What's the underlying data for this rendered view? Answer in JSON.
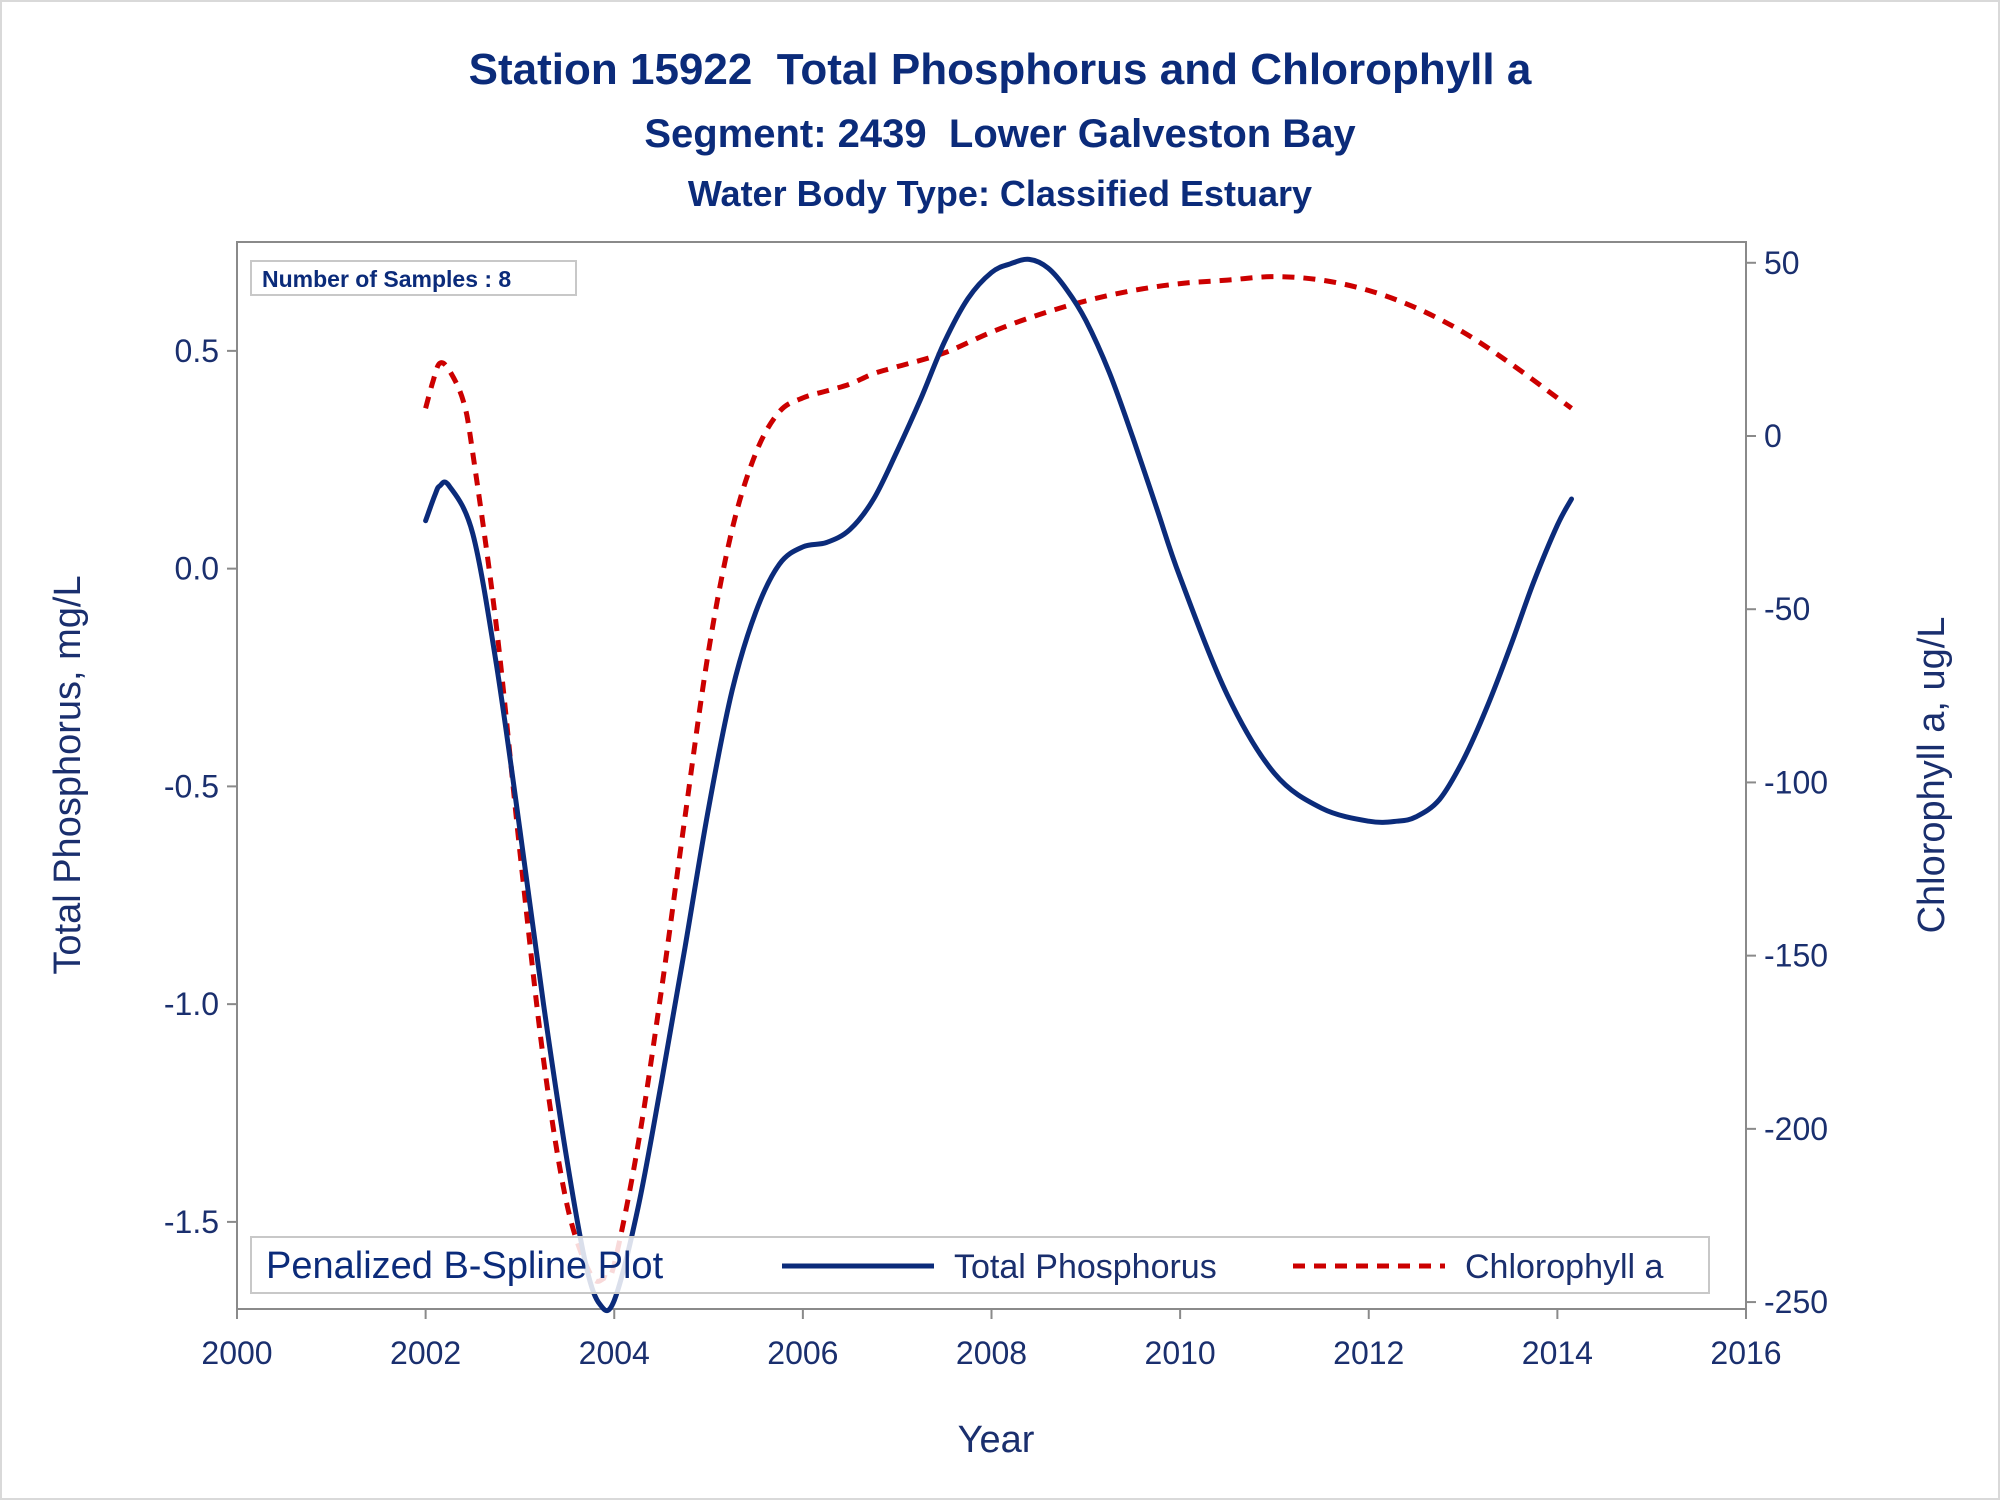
{
  "chart_data": {
    "type": "line",
    "title": "Station 15922  Total Phosphorus and Chlorophyll a",
    "subtitle": "Segment: 2439  Lower Galveston Bay",
    "subtitle2": "Water Body Type: Classified Estuary",
    "inset_label": "Number of Samples : 8",
    "xlabel": "Year",
    "ylabel": "Total Phosphorus, mg/L",
    "y2label": "Chlorophyll a, ug/L",
    "xlim": [
      2000,
      2016
    ],
    "ylim": [
      -1.7,
      0.75
    ],
    "y2lim": [
      -252,
      56
    ],
    "xticks": [
      "2000",
      "2002",
      "2004",
      "2006",
      "2008",
      "2010",
      "2012",
      "2014",
      "2016"
    ],
    "yticks": [
      "-1.5",
      "-1.0",
      "-0.5",
      "0.0",
      "0.5"
    ],
    "y2ticks": [
      "-250",
      "-200",
      "-150",
      "-100",
      "-50",
      "0",
      "50"
    ],
    "legend": {
      "title": "Penalized B-Spline Plot",
      "position": "bottom-inside",
      "items": [
        "Total Phosphorus",
        "Chlorophyll a"
      ]
    },
    "series": [
      {
        "name": "Total Phosphorus",
        "axis": "left",
        "color": "#0b2b7a",
        "style": "solid",
        "x": [
          2002.0,
          2002.1,
          2002.15,
          2002.25,
          2002.5,
          2002.75,
          2003.0,
          2003.25,
          2003.5,
          2003.7,
          2003.85,
          2004.0,
          2004.25,
          2004.5,
          2004.75,
          2005.0,
          2005.25,
          2005.5,
          2005.75,
          2006.0,
          2006.25,
          2006.5,
          2006.75,
          2007.0,
          2007.25,
          2007.5,
          2007.75,
          2008.0,
          2008.2,
          2008.4,
          2008.6,
          2008.8,
          2009.0,
          2009.25,
          2009.5,
          2009.75,
          2010.0,
          2010.5,
          2011.0,
          2011.5,
          2012.0,
          2012.3,
          2012.5,
          2012.75,
          2013.0,
          2013.25,
          2013.5,
          2013.75,
          2014.0,
          2014.15
        ],
        "values": [
          0.11,
          0.17,
          0.19,
          0.19,
          0.08,
          -0.22,
          -0.6,
          -1.0,
          -1.36,
          -1.6,
          -1.69,
          -1.68,
          -1.47,
          -1.18,
          -0.87,
          -0.55,
          -0.28,
          -0.1,
          0.01,
          0.05,
          0.06,
          0.09,
          0.16,
          0.27,
          0.39,
          0.52,
          0.62,
          0.68,
          0.7,
          0.71,
          0.69,
          0.64,
          0.57,
          0.45,
          0.3,
          0.14,
          -0.02,
          -0.29,
          -0.47,
          -0.55,
          -0.58,
          -0.58,
          -0.57,
          -0.53,
          -0.44,
          -0.32,
          -0.18,
          -0.03,
          0.1,
          0.16
        ]
      },
      {
        "name": "Chlorophyll a",
        "axis": "right",
        "color": "#cc0000",
        "style": "dashed",
        "x": [
          2002.0,
          2002.08,
          2002.15,
          2002.25,
          2002.4,
          2002.5,
          2002.75,
          2003.0,
          2003.25,
          2003.5,
          2003.75,
          2003.9,
          2004.0,
          2004.25,
          2004.5,
          2004.75,
          2005.0,
          2005.25,
          2005.5,
          2005.75,
          2006.0,
          2006.25,
          2006.5,
          2006.75,
          2007.0,
          2007.5,
          2008.0,
          2008.5,
          2009.0,
          2009.5,
          2010.0,
          2010.5,
          2011.0,
          2011.5,
          2012.0,
          2012.5,
          2013.0,
          2013.5,
          2014.0,
          2014.15
        ],
        "values": [
          8,
          16,
          21,
          19,
          10,
          -5,
          -55,
          -120,
          -180,
          -222,
          -242,
          -243,
          -239,
          -205,
          -160,
          -110,
          -62,
          -27,
          -5,
          7,
          11,
          13,
          15,
          18,
          20,
          24,
          30,
          35,
          39,
          42,
          44,
          45,
          46,
          45,
          42,
          37,
          30,
          21,
          11,
          8
        ]
      }
    ]
  }
}
